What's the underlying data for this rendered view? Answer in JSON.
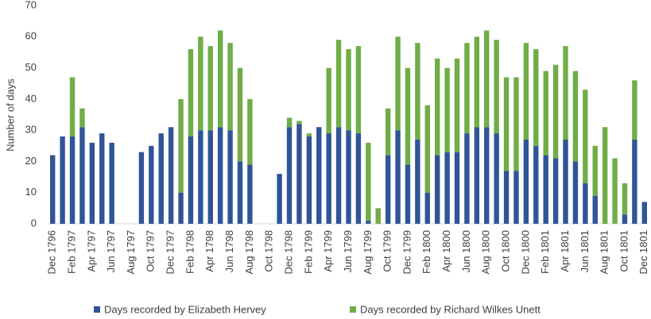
{
  "chart_data": {
    "type": "stacked-bar",
    "y_label": "Number of days",
    "categories": [
      "Dec 1796",
      null,
      "Feb 1797",
      null,
      "Apr 1797",
      null,
      "Jun 1797",
      null,
      "Aug 1797",
      null,
      "Oct 1797",
      null,
      "Dec 1797",
      null,
      "Feb 1798",
      null,
      "Apr 1798",
      null,
      "Jun 1798",
      null,
      "Aug 1798",
      null,
      "Oct 1798",
      null,
      "Dec 1798",
      null,
      "Feb 1799",
      null,
      "Apr 1799",
      null,
      "Jun 1799",
      null,
      "Aug 1799",
      null,
      "Oct 1799",
      null,
      "Dec 1799",
      null,
      "Feb 1800",
      null,
      "Apr 1800",
      null,
      "Jun 1800",
      null,
      "Aug 1800",
      null,
      "Oct 1800",
      null,
      "Dec 1800",
      null,
      "Feb 1801",
      null,
      "Apr 1801",
      null,
      "Jun 1801",
      null,
      "Aug 1801",
      null,
      "Oct 1801",
      null,
      "Dec 1801"
    ],
    "series": [
      {
        "name": "Days recorded by Elizabeth Hervey",
        "color": "#2f5597",
        "values": [
          22,
          28,
          28,
          31,
          26,
          29,
          26,
          0,
          0,
          23,
          25,
          29,
          31,
          10,
          28,
          30,
          30,
          31,
          30,
          20,
          19,
          0,
          0,
          16,
          31,
          32,
          28,
          31,
          29,
          31,
          30,
          29,
          1,
          0,
          22,
          30,
          19,
          27,
          10,
          22,
          23,
          23,
          29,
          31,
          31,
          29,
          17,
          17,
          27,
          25,
          22,
          21,
          27,
          20,
          13,
          9,
          0,
          0,
          3,
          27,
          7
        ]
      },
      {
        "name": "Days recorded by Richard Wilkes Unett",
        "color": "#70ad47",
        "values": [
          0,
          0,
          19,
          6,
          0,
          0,
          0,
          0,
          0,
          0,
          0,
          0,
          0,
          30,
          28,
          30,
          27,
          31,
          28,
          30,
          21,
          0,
          0,
          0,
          3,
          1,
          1,
          0,
          21,
          28,
          26,
          28,
          25,
          5,
          15,
          30,
          31,
          31,
          28,
          31,
          27,
          30,
          29,
          29,
          31,
          30,
          30,
          30,
          31,
          31,
          27,
          30,
          30,
          29,
          30,
          16,
          31,
          21,
          10,
          19,
          0
        ]
      }
    ],
    "ylim": [
      0,
      70
    ],
    "yticks": [
      0,
      10,
      20,
      30,
      40,
      50,
      60,
      70
    ],
    "grid": false,
    "legend": "bottom"
  }
}
